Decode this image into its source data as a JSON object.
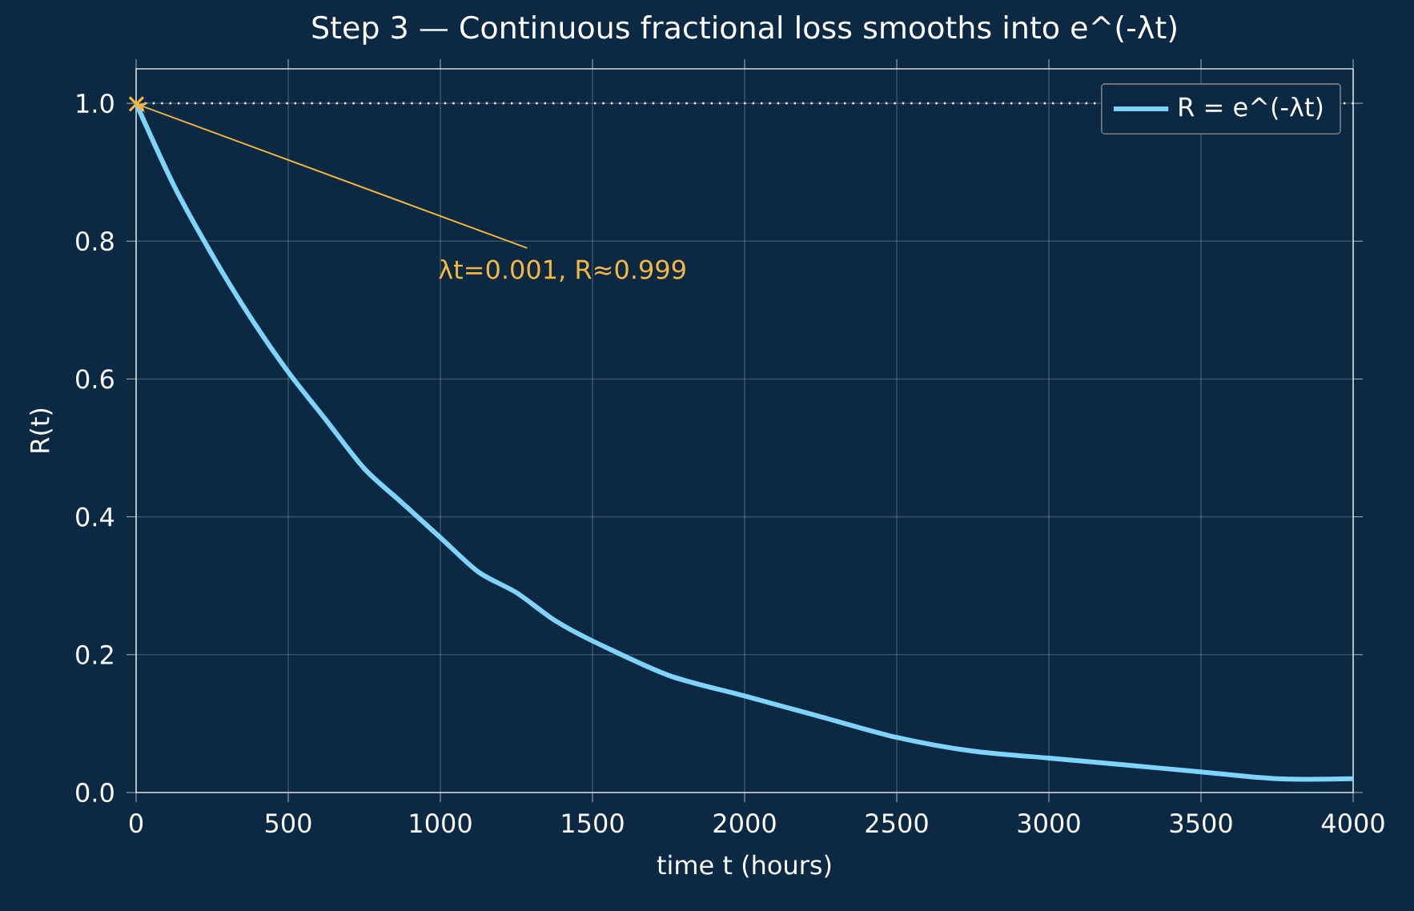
{
  "chart_data": {
    "type": "line",
    "title": "Step 3 — Continuous fractional loss smooths into e^(-λt)",
    "xlabel": "time t (hours)",
    "ylabel": "R(t)",
    "x": [
      0,
      125,
      250,
      375,
      500,
      625,
      750,
      875,
      1000,
      1125,
      1250,
      1375,
      1500,
      1750,
      2000,
      2250,
      2500,
      2750,
      3000,
      3250,
      3500,
      3750,
      4000
    ],
    "series": [
      {
        "name": "R = e^(-λt)",
        "color": "#7fd3ff",
        "values": [
          1.0,
          0.88,
          0.78,
          0.69,
          0.61,
          0.54,
          0.47,
          0.42,
          0.37,
          0.32,
          0.29,
          0.25,
          0.22,
          0.17,
          0.14,
          0.11,
          0.08,
          0.06,
          0.05,
          0.04,
          0.03,
          0.02,
          0.02
        ]
      },
      {
        "type": "scatter",
        "marker": "cross",
        "color": "#f5b642",
        "x": [
          1
        ],
        "values": [
          0.999
        ]
      }
    ],
    "annotations": [
      {
        "text": "λt=0.001,  R≈0.999",
        "x": 1,
        "y": 0.999
      }
    ],
    "ref_lines": [
      {
        "axis": "y",
        "value": 1.0,
        "color": "#ffffff",
        "line_style": "dotted"
      }
    ],
    "xlim": [
      0,
      4000
    ],
    "ylim": [
      0,
      1.05
    ],
    "xticks": [
      0,
      500,
      1000,
      1500,
      2000,
      2500,
      3000,
      3500,
      4000
    ],
    "yticks": [
      {
        "value": 0,
        "label": "0.0"
      },
      {
        "value": 0.2,
        "label": "0.2"
      },
      {
        "value": 0.4,
        "label": "0.4"
      },
      {
        "value": 0.6,
        "label": "0.6"
      },
      {
        "value": 0.8,
        "label": "0.8"
      },
      {
        "value": 1.0,
        "label": "1.0"
      }
    ],
    "grid": true,
    "legend": "top right"
  }
}
